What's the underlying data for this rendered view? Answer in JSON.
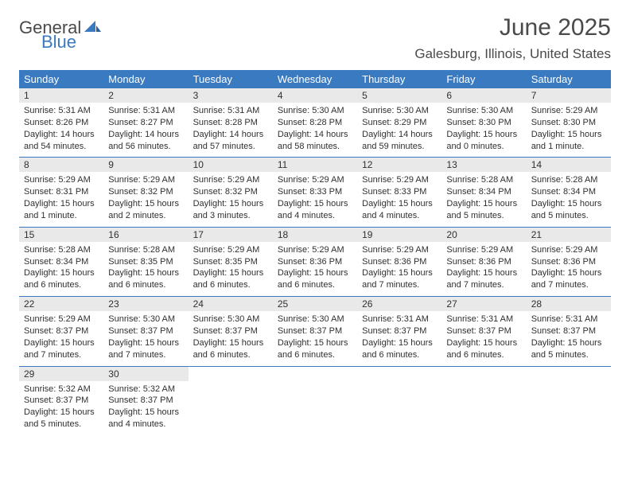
{
  "logo": {
    "word1": "General",
    "word2": "Blue"
  },
  "title": "June 2025",
  "location": "Galesburg, Illinois, United States",
  "colors": {
    "header_bg": "#3a7ac0",
    "band_bg": "#e9e9e9",
    "text": "#303030",
    "title_text": "#4a4a4a"
  },
  "weekdays": [
    "Sunday",
    "Monday",
    "Tuesday",
    "Wednesday",
    "Thursday",
    "Friday",
    "Saturday"
  ],
  "days": [
    {
      "n": "1",
      "sunrise": "5:31 AM",
      "sunset": "8:26 PM",
      "daylight": "14 hours and 54 minutes."
    },
    {
      "n": "2",
      "sunrise": "5:31 AM",
      "sunset": "8:27 PM",
      "daylight": "14 hours and 56 minutes."
    },
    {
      "n": "3",
      "sunrise": "5:31 AM",
      "sunset": "8:28 PM",
      "daylight": "14 hours and 57 minutes."
    },
    {
      "n": "4",
      "sunrise": "5:30 AM",
      "sunset": "8:28 PM",
      "daylight": "14 hours and 58 minutes."
    },
    {
      "n": "5",
      "sunrise": "5:30 AM",
      "sunset": "8:29 PM",
      "daylight": "14 hours and 59 minutes."
    },
    {
      "n": "6",
      "sunrise": "5:30 AM",
      "sunset": "8:30 PM",
      "daylight": "15 hours and 0 minutes."
    },
    {
      "n": "7",
      "sunrise": "5:29 AM",
      "sunset": "8:30 PM",
      "daylight": "15 hours and 1 minute."
    },
    {
      "n": "8",
      "sunrise": "5:29 AM",
      "sunset": "8:31 PM",
      "daylight": "15 hours and 1 minute."
    },
    {
      "n": "9",
      "sunrise": "5:29 AM",
      "sunset": "8:32 PM",
      "daylight": "15 hours and 2 minutes."
    },
    {
      "n": "10",
      "sunrise": "5:29 AM",
      "sunset": "8:32 PM",
      "daylight": "15 hours and 3 minutes."
    },
    {
      "n": "11",
      "sunrise": "5:29 AM",
      "sunset": "8:33 PM",
      "daylight": "15 hours and 4 minutes."
    },
    {
      "n": "12",
      "sunrise": "5:29 AM",
      "sunset": "8:33 PM",
      "daylight": "15 hours and 4 minutes."
    },
    {
      "n": "13",
      "sunrise": "5:28 AM",
      "sunset": "8:34 PM",
      "daylight": "15 hours and 5 minutes."
    },
    {
      "n": "14",
      "sunrise": "5:28 AM",
      "sunset": "8:34 PM",
      "daylight": "15 hours and 5 minutes."
    },
    {
      "n": "15",
      "sunrise": "5:28 AM",
      "sunset": "8:34 PM",
      "daylight": "15 hours and 6 minutes."
    },
    {
      "n": "16",
      "sunrise": "5:28 AM",
      "sunset": "8:35 PM",
      "daylight": "15 hours and 6 minutes."
    },
    {
      "n": "17",
      "sunrise": "5:29 AM",
      "sunset": "8:35 PM",
      "daylight": "15 hours and 6 minutes."
    },
    {
      "n": "18",
      "sunrise": "5:29 AM",
      "sunset": "8:36 PM",
      "daylight": "15 hours and 6 minutes."
    },
    {
      "n": "19",
      "sunrise": "5:29 AM",
      "sunset": "8:36 PM",
      "daylight": "15 hours and 7 minutes."
    },
    {
      "n": "20",
      "sunrise": "5:29 AM",
      "sunset": "8:36 PM",
      "daylight": "15 hours and 7 minutes."
    },
    {
      "n": "21",
      "sunrise": "5:29 AM",
      "sunset": "8:36 PM",
      "daylight": "15 hours and 7 minutes."
    },
    {
      "n": "22",
      "sunrise": "5:29 AM",
      "sunset": "8:37 PM",
      "daylight": "15 hours and 7 minutes."
    },
    {
      "n": "23",
      "sunrise": "5:30 AM",
      "sunset": "8:37 PM",
      "daylight": "15 hours and 7 minutes."
    },
    {
      "n": "24",
      "sunrise": "5:30 AM",
      "sunset": "8:37 PM",
      "daylight": "15 hours and 6 minutes."
    },
    {
      "n": "25",
      "sunrise": "5:30 AM",
      "sunset": "8:37 PM",
      "daylight": "15 hours and 6 minutes."
    },
    {
      "n": "26",
      "sunrise": "5:31 AM",
      "sunset": "8:37 PM",
      "daylight": "15 hours and 6 minutes."
    },
    {
      "n": "27",
      "sunrise": "5:31 AM",
      "sunset": "8:37 PM",
      "daylight": "15 hours and 6 minutes."
    },
    {
      "n": "28",
      "sunrise": "5:31 AM",
      "sunset": "8:37 PM",
      "daylight": "15 hours and 5 minutes."
    },
    {
      "n": "29",
      "sunrise": "5:32 AM",
      "sunset": "8:37 PM",
      "daylight": "15 hours and 5 minutes."
    },
    {
      "n": "30",
      "sunrise": "5:32 AM",
      "sunset": "8:37 PM",
      "daylight": "15 hours and 4 minutes."
    }
  ],
  "labels": {
    "sunrise": "Sunrise:",
    "sunset": "Sunset:",
    "daylight": "Daylight:"
  }
}
